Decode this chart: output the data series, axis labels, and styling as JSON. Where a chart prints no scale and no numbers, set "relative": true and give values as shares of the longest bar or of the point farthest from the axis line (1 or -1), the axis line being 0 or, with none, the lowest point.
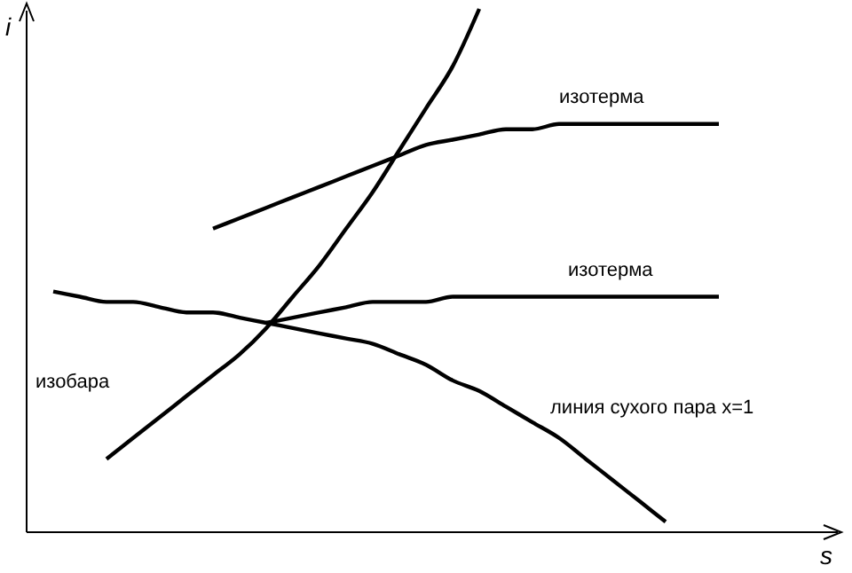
{
  "chart_data": {
    "type": "line",
    "relative": true,
    "xlabel": "s",
    "ylabel": "i",
    "line_style": "solid",
    "categories": [
      null,
      null,
      null,
      null,
      null,
      null,
      null,
      null,
      null,
      null,
      null,
      null,
      null,
      null,
      null,
      null,
      null,
      null,
      null,
      null,
      null,
      null,
      null,
      null,
      null,
      null
    ],
    "series": [
      {
        "name": "изобара",
        "color": "#000000",
        "values": [
          null,
          null,
          0.14,
          0.18,
          0.22,
          0.26,
          0.3,
          0.34,
          0.39,
          0.45,
          0.51,
          0.58,
          0.65,
          0.73,
          0.81,
          0.89,
          1.0,
          null,
          null,
          null,
          null,
          null,
          null,
          null,
          null,
          null
        ]
      },
      {
        "name": "изотерма",
        "color": "#000000",
        "values": [
          null,
          null,
          null,
          null,
          null,
          null,
          0.58,
          0.6,
          0.62,
          0.64,
          0.66,
          0.68,
          0.7,
          0.72,
          0.74,
          0.75,
          0.76,
          0.77,
          0.77,
          0.78,
          0.78,
          0.78,
          0.78,
          0.78,
          0.78,
          0.78
        ]
      },
      {
        "name": "изотерма",
        "color": "#000000",
        "values": [
          null,
          null,
          null,
          null,
          null,
          null,
          null,
          null,
          0.4,
          0.41,
          0.42,
          0.43,
          0.44,
          0.44,
          0.44,
          0.45,
          0.45,
          0.45,
          0.45,
          0.45,
          0.45,
          0.45,
          0.45,
          0.45,
          0.45,
          0.45
        ]
      },
      {
        "name": "линия сухого пара x=1",
        "color": "#000000",
        "values": [
          0.46,
          0.45,
          0.44,
          0.44,
          0.43,
          0.42,
          0.42,
          0.41,
          0.4,
          0.39,
          0.38,
          0.37,
          0.36,
          0.34,
          0.32,
          0.29,
          0.27,
          0.24,
          0.21,
          0.18,
          0.14,
          0.1,
          0.06,
          0.02,
          null,
          null
        ]
      }
    ]
  }
}
